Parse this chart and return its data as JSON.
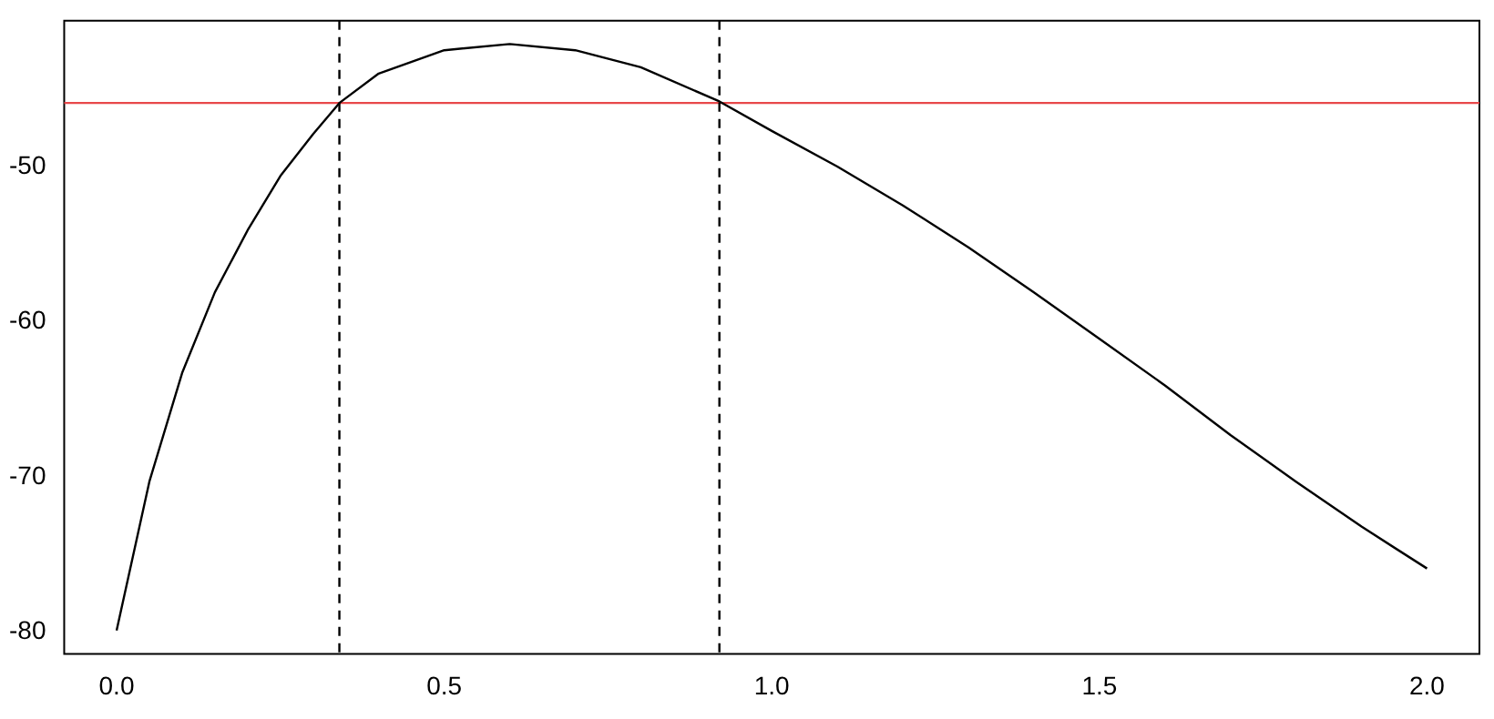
{
  "chart_data": {
    "type": "line",
    "x": [
      0,
      0.05,
      0.1,
      0.15,
      0.2,
      0.25,
      0.3,
      0.34,
      0.4,
      0.5,
      0.6,
      0.7,
      0.8,
      0.92,
      1.0,
      1.1,
      1.2,
      1.3,
      1.4,
      1.5,
      1.6,
      1.7,
      1.8,
      1.9,
      2.0
    ],
    "series": [
      {
        "color": "#000000",
        "values": [
          -79.9,
          -70.3,
          -63.3,
          -58.1,
          -54.1,
          -50.6,
          -47.9,
          -45.9,
          -44.0,
          -42.5,
          -42.1,
          -42.5,
          -43.6,
          -45.8,
          -47.7,
          -50.0,
          -52.5,
          -55.2,
          -58.1,
          -61.1,
          -64.1,
          -67.3,
          -70.3,
          -73.2,
          -75.9
        ]
      }
    ],
    "xlim": [
      -0.08,
      2.08
    ],
    "xticks": [
      {
        "value": 0,
        "label": "0.0"
      },
      0.5,
      {
        "value": 1,
        "label": "1.0"
      },
      1.5,
      {
        "value": 2,
        "label": "2.0"
      }
    ],
    "ylim": [
      -81.4,
      -40.6
    ],
    "yticks": [
      -80,
      -70,
      -60,
      -50
    ],
    "ref_lines": [
      {
        "axis": "y",
        "value": -45.9,
        "color": "#e8484a",
        "line_style": "solid"
      },
      {
        "axis": "x",
        "value": 0.34,
        "color": "#000000",
        "line_style": "dashed"
      },
      {
        "axis": "x",
        "value": 0.92,
        "color": "#000000",
        "line_style": "dashed"
      }
    ],
    "grid": false,
    "legend": false,
    "marker": "none",
    "line_style": "solid"
  }
}
